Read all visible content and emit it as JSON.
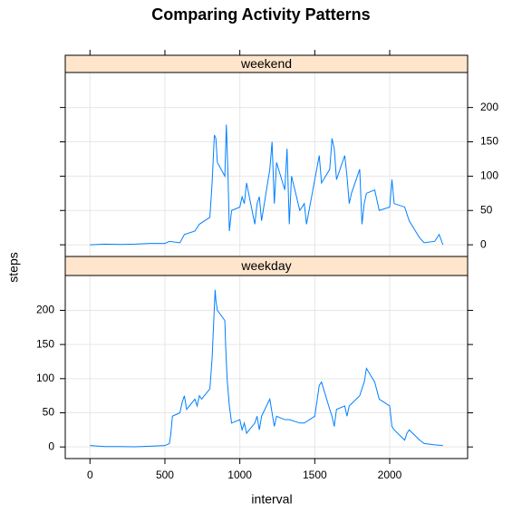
{
  "title": "Comparing Activity Patterns",
  "xlabel": "interval",
  "ylabel": "steps",
  "chart_data": [
    {
      "type": "line",
      "strip": "weekend",
      "ytick_side": "right",
      "grid": true,
      "xlim": [
        -165,
        2520
      ],
      "ylim": [
        -17,
        251
      ],
      "xticks": [
        0,
        500,
        1000,
        1500,
        2000
      ],
      "yticks": [
        0,
        50,
        100,
        150,
        200
      ],
      "x": [
        0,
        100,
        200,
        300,
        400,
        500,
        530,
        600,
        630,
        700,
        730,
        800,
        815,
        830,
        840,
        850,
        900,
        910,
        920,
        930,
        945,
        1000,
        1015,
        1030,
        1045,
        1100,
        1115,
        1130,
        1145,
        1200,
        1215,
        1230,
        1245,
        1300,
        1315,
        1330,
        1345,
        1400,
        1430,
        1445,
        1500,
        1530,
        1545,
        1600,
        1615,
        1630,
        1645,
        1700,
        1715,
        1730,
        1745,
        1800,
        1815,
        1830,
        1845,
        1900,
        1930,
        2000,
        2015,
        2030,
        2100,
        2130,
        2200,
        2230,
        2300,
        2330,
        2355
      ],
      "series": [
        {
          "color": "#0080ff",
          "values": [
            0,
            1,
            0.5,
            1,
            2,
            2,
            5,
            3,
            15,
            20,
            30,
            40,
            90,
            160,
            155,
            120,
            100,
            175,
            110,
            20,
            50,
            55,
            70,
            60,
            90,
            30,
            60,
            70,
            35,
            110,
            150,
            60,
            120,
            80,
            140,
            30,
            100,
            50,
            60,
            30,
            95,
            130,
            90,
            110,
            155,
            140,
            95,
            130,
            100,
            60,
            75,
            110,
            30,
            60,
            75,
            80,
            50,
            55,
            95,
            60,
            55,
            35,
            10,
            3,
            5,
            15,
            0
          ]
        }
      ]
    },
    {
      "type": "line",
      "strip": "weekday",
      "ytick_side": "left",
      "grid": true,
      "xlim": [
        -165,
        2520
      ],
      "ylim": [
        -17,
        251
      ],
      "xticks": [
        0,
        500,
        1000,
        1500,
        2000
      ],
      "yticks": [
        0,
        50,
        100,
        150,
        200
      ],
      "x": [
        0,
        100,
        200,
        300,
        400,
        500,
        530,
        540,
        550,
        600,
        615,
        630,
        645,
        700,
        715,
        730,
        745,
        800,
        815,
        830,
        835,
        840,
        850,
        900,
        905,
        915,
        930,
        945,
        1000,
        1015,
        1030,
        1045,
        1100,
        1115,
        1130,
        1145,
        1200,
        1215,
        1230,
        1245,
        1300,
        1330,
        1400,
        1430,
        1500,
        1530,
        1545,
        1600,
        1615,
        1630,
        1645,
        1700,
        1715,
        1730,
        1800,
        1830,
        1845,
        1900,
        1930,
        2000,
        2015,
        2030,
        2100,
        2115,
        2130,
        2200,
        2230,
        2300,
        2355
      ],
      "series": [
        {
          "color": "#0080ff",
          "values": [
            2,
            0.5,
            0.5,
            0.3,
            1,
            2,
            5,
            20,
            45,
            50,
            65,
            75,
            55,
            70,
            60,
            75,
            70,
            85,
            130,
            205,
            230,
            215,
            200,
            185,
            150,
            100,
            60,
            35,
            40,
            25,
            35,
            20,
            35,
            45,
            25,
            45,
            70,
            50,
            30,
            45,
            40,
            40,
            35,
            35,
            45,
            90,
            95,
            55,
            45,
            30,
            55,
            60,
            45,
            60,
            75,
            95,
            115,
            95,
            70,
            60,
            30,
            25,
            10,
            20,
            25,
            10,
            5,
            3,
            2
          ]
        }
      ]
    }
  ]
}
